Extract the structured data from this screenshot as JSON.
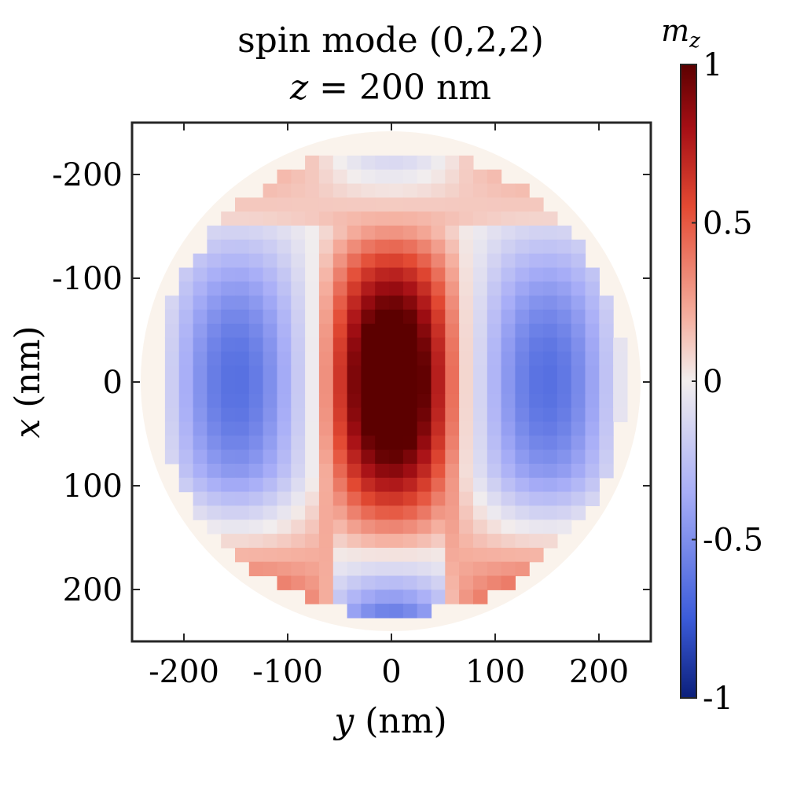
{
  "chart_data": {
    "type": "heatmap",
    "title_line1": "spin mode (0,2,2)",
    "title_line2_var": "z",
    "title_line2_rest": " = 200 nm",
    "xlabel_var": "y",
    "xlabel_rest": " (nm)",
    "ylabel_var": "x",
    "ylabel_rest": " (nm)",
    "xlim": [
      -250,
      250
    ],
    "ylim": [
      -250,
      250
    ],
    "xticks": [
      -200,
      -100,
      0,
      100,
      200
    ],
    "xtick_labels": [
      "-200",
      "-100",
      "0",
      "100",
      "200"
    ],
    "yticks": [
      -200,
      -100,
      0,
      100,
      200
    ],
    "ytick_labels": [
      "-200",
      "-100",
      "0",
      "100",
      "200"
    ],
    "y_axis_reversed": true,
    "disk_radius_nm": 225,
    "pixel_size_nm": 13.5,
    "colorbar": {
      "label_var": "m",
      "label_sub": "z",
      "range": [
        -1,
        1
      ],
      "ticks": [
        1,
        0.5,
        0,
        -0.5,
        -1
      ],
      "tick_labels": [
        "1",
        "0.5",
        "0",
        "-0.5",
        "-1"
      ],
      "colors": [
        "#0b1f7a",
        "#3b5bd9",
        "#a8aef7",
        "#f2eeee",
        "#f5b0a0",
        "#e34a33",
        "#a50f15",
        "#5c0000"
      ],
      "color_positions": [
        -1,
        -0.75,
        -0.35,
        0,
        0.2,
        0.55,
        0.8,
        1
      ]
    },
    "field_model": "m = cos(pi*y/150) * cos(pi*x/300) * envelope(radius)",
    "outside_color": "#faf3ec"
  }
}
